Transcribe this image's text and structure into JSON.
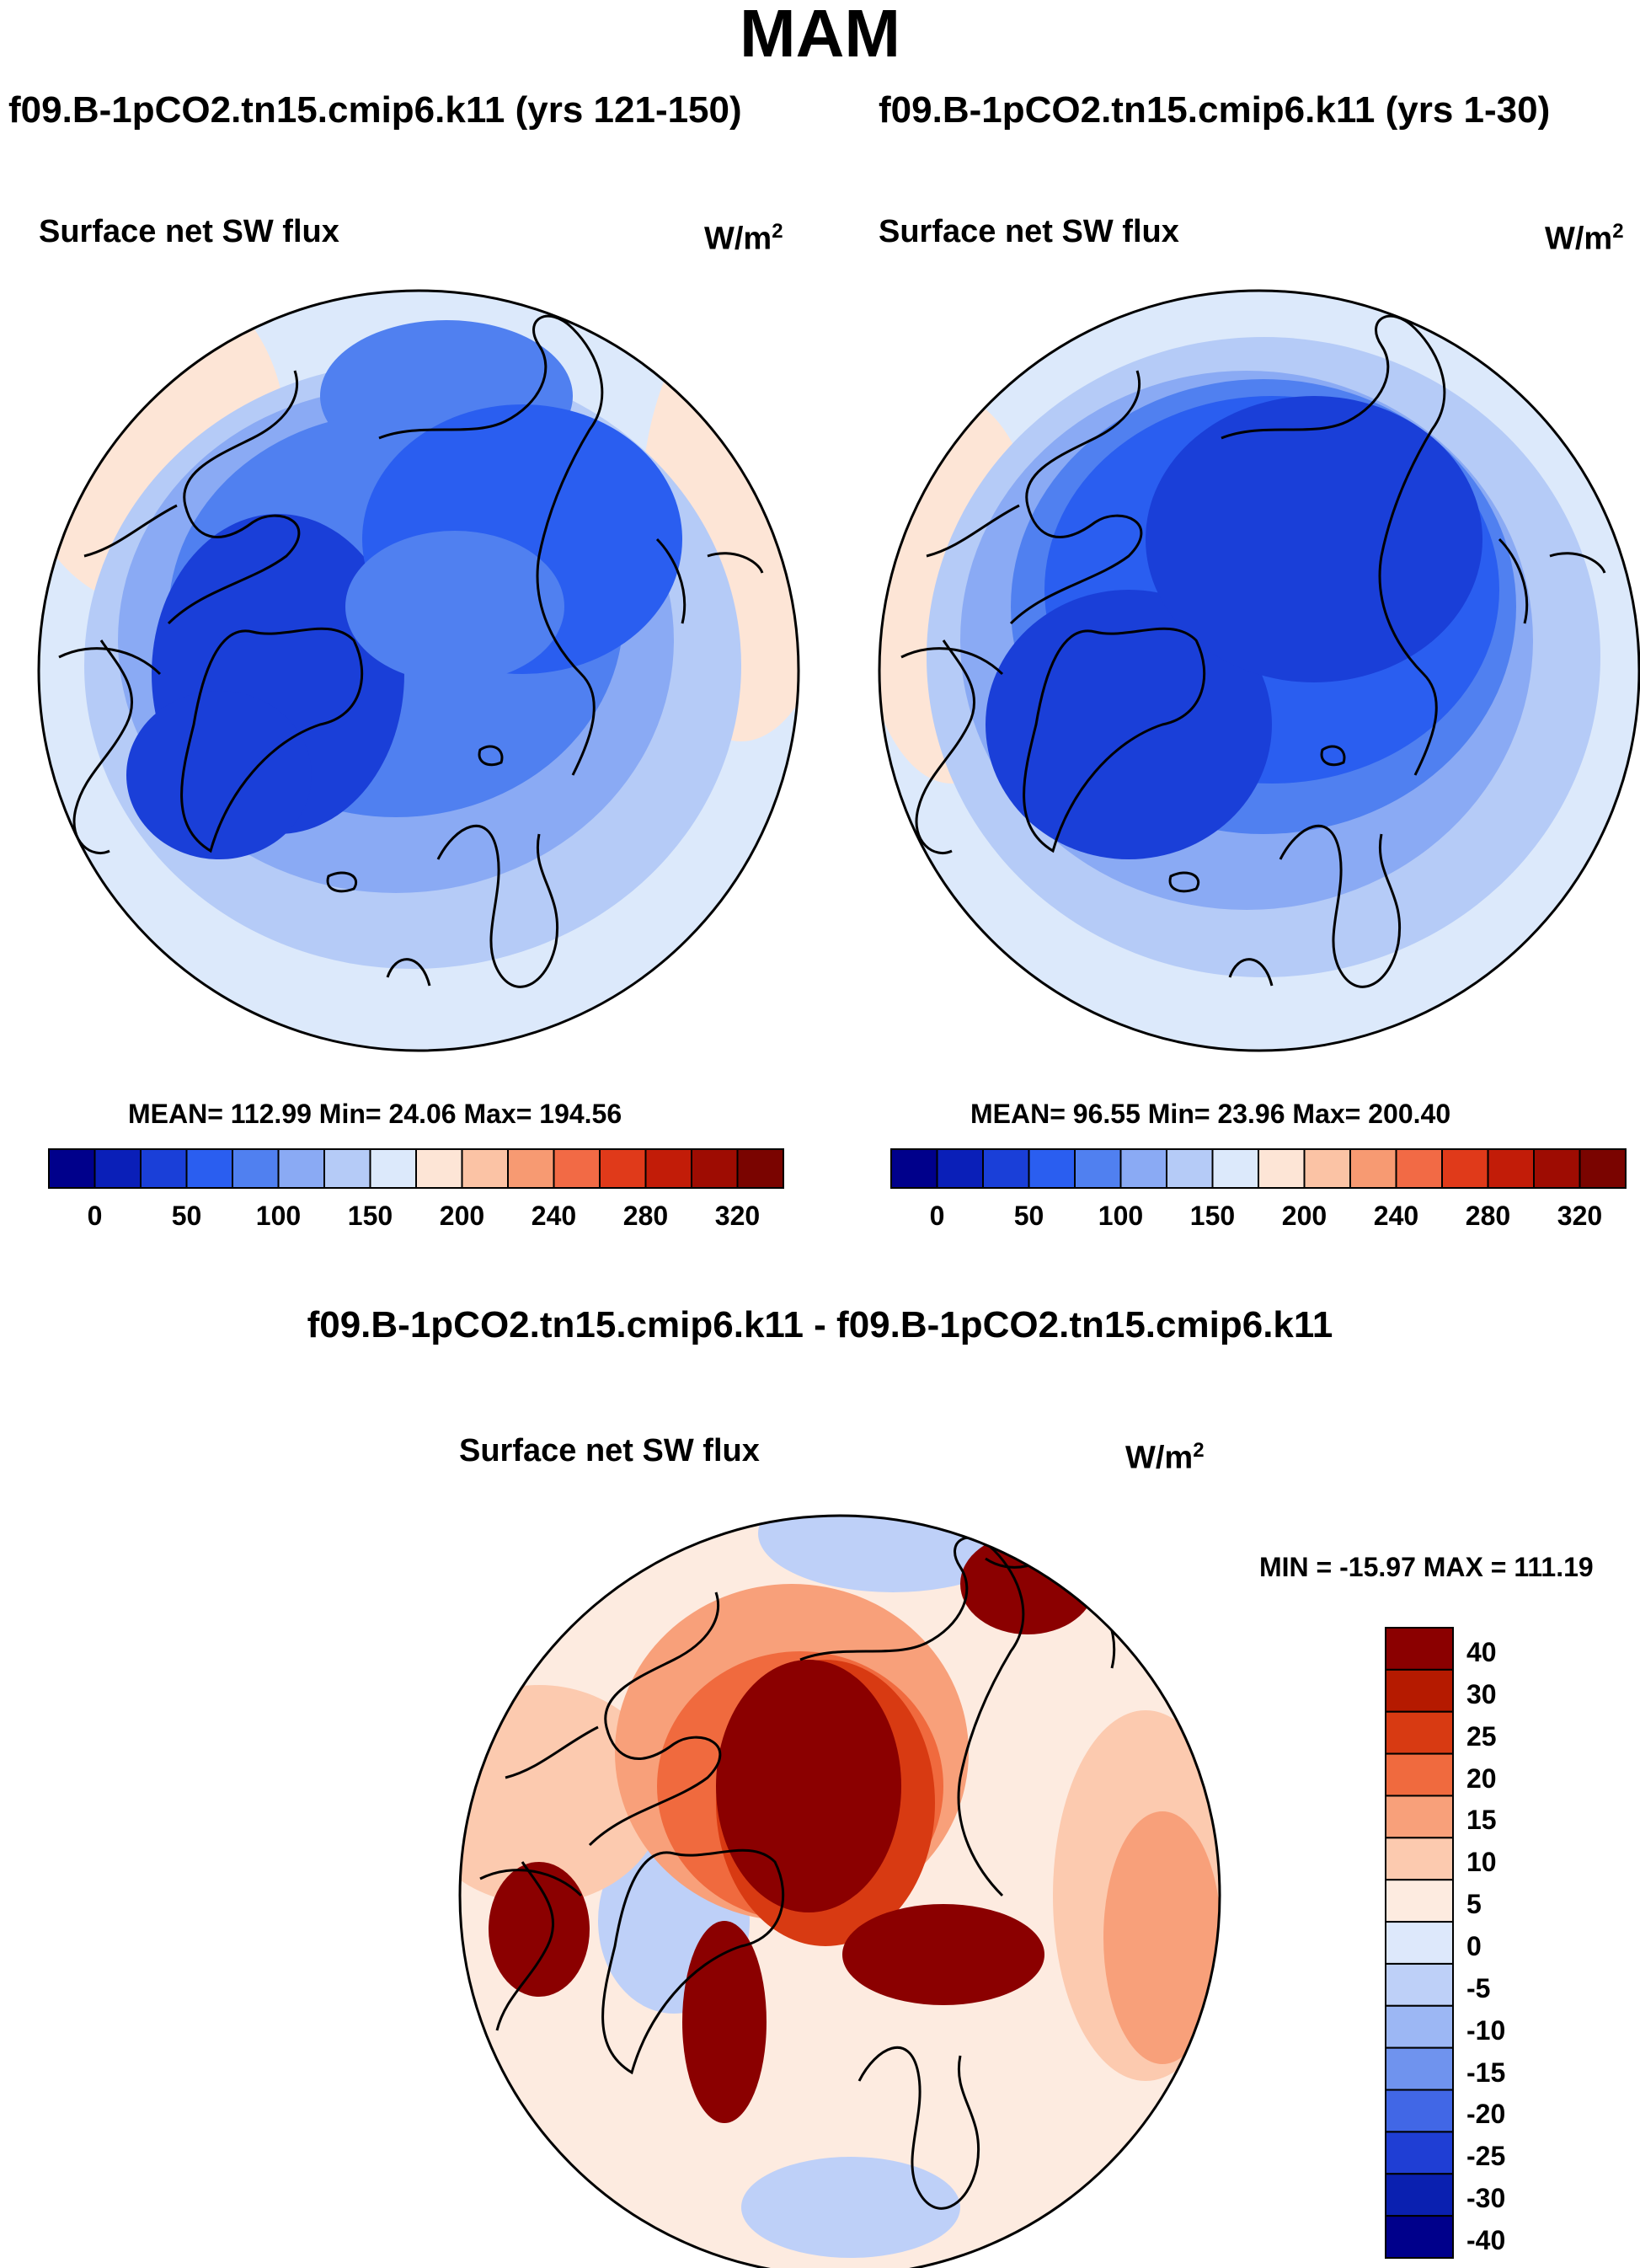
{
  "main_title": "MAM",
  "panels": [
    {
      "case_title": "f09.B-1pCO2.tn15.cmip6.k11 (yrs 121-150)",
      "variable": "Surface net SW flux",
      "units_base": "W/m",
      "units_exp": "2",
      "stats": "MEAN= 112.99  Min=  24.06  Max= 194.56"
    },
    {
      "case_title": "f09.B-1pCO2.tn15.cmip6.k11 (yrs 1-30)",
      "variable": "Surface net SW flux",
      "units_base": "W/m",
      "units_exp": "2",
      "stats": "MEAN=  96.55  Min=  23.96  Max= 200.40"
    }
  ],
  "colorbar": {
    "colors": [
      "#00008b",
      "#0a1fb8",
      "#1a3fd8",
      "#2a5ef0",
      "#5080f0",
      "#8aaaf4",
      "#b5cbf7",
      "#dce9fb",
      "#fde5d6",
      "#fbc3a5",
      "#f79a72",
      "#f26a45",
      "#e03a1a",
      "#c21c08",
      "#9e0c02",
      "#7a0400"
    ],
    "labels": [
      "0",
      "50",
      "100",
      "150",
      "200",
      "240",
      "280",
      "320"
    ]
  },
  "diff": {
    "title": "f09.B-1pCO2.tn15.cmip6.k11 - f09.B-1pCO2.tn15.cmip6.k11",
    "variable": "Surface net SW flux",
    "units_base": "W/m",
    "units_exp": "2",
    "minmax": "MIN = -15.97 MAX = 111.19",
    "colorbar": {
      "colors": [
        "#8b0000",
        "#b51a00",
        "#d83a12",
        "#f06a3e",
        "#f8a07a",
        "#fccaaf",
        "#fdebe0",
        "#dde8fb",
        "#bed0f8",
        "#9cb7f4",
        "#6f93ee",
        "#4167e6",
        "#1f3ed4",
        "#0a20b0",
        "#00008b"
      ],
      "labels": [
        "40",
        "30",
        "25",
        "20",
        "15",
        "10",
        "5",
        "0",
        "-5",
        "-10",
        "-15",
        "-20",
        "-25",
        "-30",
        "-40"
      ]
    }
  },
  "map_palette": {
    "ocean_low": "#dce9fb",
    "ocean_mid": "#b5cbf7",
    "ice_mid": "#8aaaf4",
    "ice_high": "#5080f0",
    "ice_core": "#2a5ef0",
    "ice_deep": "#1a3fd8",
    "warm_edge": "#fde5d6",
    "diff_pale": "#fdebe0",
    "diff_light": "#fccaaf",
    "diff_mid": "#f8a07a",
    "diff_orange": "#f06a3e",
    "diff_red": "#d83a12",
    "diff_dark": "#8b0000",
    "diff_blue": "#bed0f8"
  }
}
